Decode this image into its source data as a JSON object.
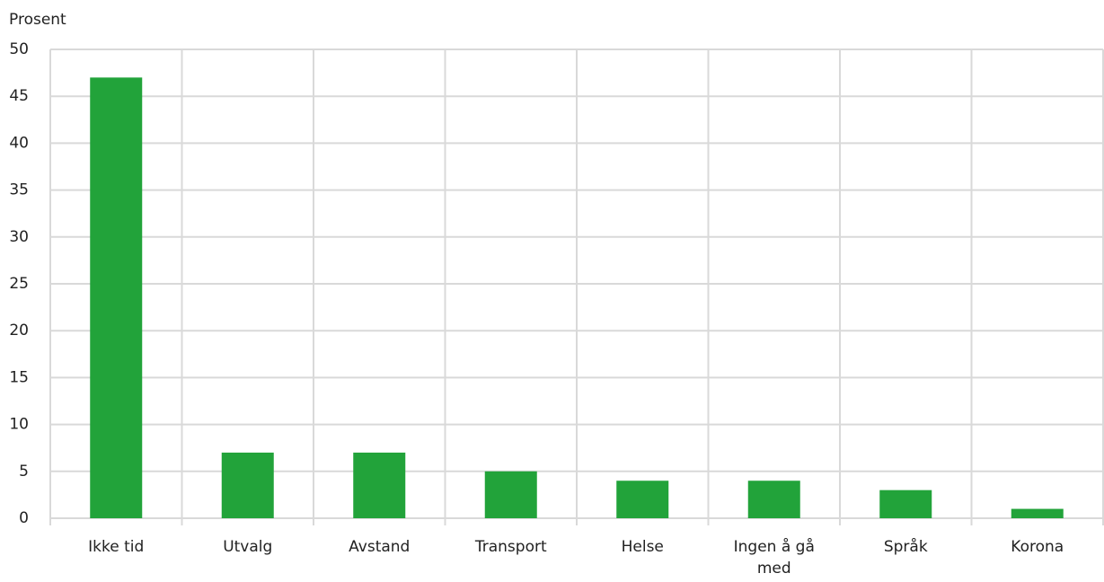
{
  "chart_data": {
    "type": "bar",
    "y_label": "Prosent",
    "categories": [
      "Ikke tid",
      "Utvalg",
      "Avstand",
      "Transport",
      "Helse",
      "Ingen å gå med",
      "Språk",
      "Korona"
    ],
    "values": [
      47,
      7,
      7,
      5,
      4,
      4,
      3,
      1
    ],
    "color": "#22a33a",
    "ylim": [
      0,
      50
    ],
    "yticks": [
      0,
      5,
      10,
      15,
      20,
      25,
      30,
      35,
      40,
      45,
      50
    ],
    "grid": true
  }
}
